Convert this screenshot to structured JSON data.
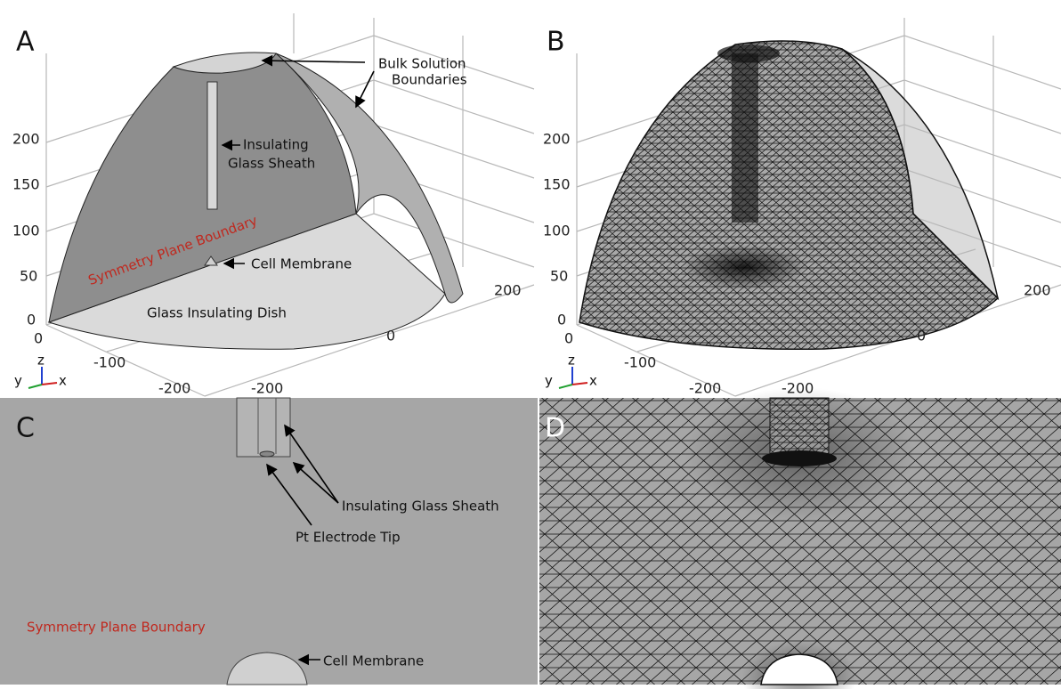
{
  "panels": [
    {
      "label": "A",
      "z_ticks": [
        "200",
        "150",
        "100",
        "50",
        "0"
      ],
      "x_ticks": [
        "0",
        "-100",
        "-200"
      ],
      "y_ticks": [
        "-200",
        "0",
        "200"
      ],
      "triad": [
        "z",
        "y",
        "x"
      ],
      "annotations": [
        "Bulk Solution",
        "Boundaries",
        "Insulating",
        "Glass Sheath",
        "Symmetry Plane Boundary",
        "Cell Membrane",
        "Glass Insulating Dish"
      ]
    },
    {
      "label": "B",
      "z_ticks": [
        "200",
        "150",
        "100",
        "50",
        "0"
      ],
      "x_ticks": [
        "0",
        "-100",
        "-200"
      ],
      "y_ticks": [
        "-200",
        "0",
        "200"
      ],
      "triad": [
        "z",
        "y",
        "x"
      ]
    },
    {
      "label": "C",
      "annotations": [
        "Insulating Glass Sheath",
        "Pt Electrode Tip",
        "Symmetry Plane Boundary",
        "Cell Membrane"
      ]
    },
    {
      "label": "D"
    }
  ]
}
